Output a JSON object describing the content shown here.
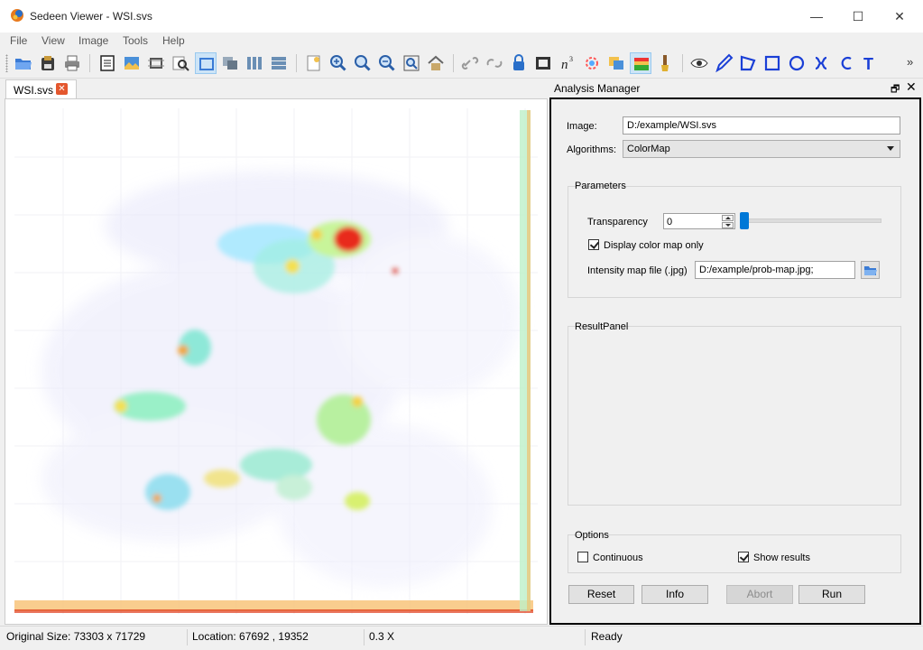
{
  "window": {
    "title": "Sedeen Viewer - WSI.svs",
    "minimize_glyph": "—",
    "maximize_glyph": "☐",
    "close_glyph": "✕"
  },
  "menu": [
    "File",
    "View",
    "Image",
    "Tools",
    "Help"
  ],
  "toolbar": {
    "icons": [
      "open-folder-icon",
      "save-icon",
      "print-icon",
      "document-icon",
      "image-icon",
      "crop-icon",
      "magnifier-icon",
      "single-view-icon",
      "overlay-view-icon",
      "columns-view-icon",
      "rows-view-icon",
      "new-page-icon",
      "zoom-in-icon",
      "zoom-out-icon",
      "zoom-minus-icon",
      "zoom-fit-icon",
      "home-icon",
      "link-icon",
      "unlink-icon",
      "lock-icon",
      "filmstrip-icon",
      "n-superscript-icon",
      "color-wheel-icon",
      "layers-icon",
      "heatmap-icon",
      "brush-icon",
      "eye-icon",
      "pen-icon",
      "polygon-icon",
      "rectangle-icon",
      "ellipse-icon",
      "freeform-icon",
      "curve-icon",
      "text-icon"
    ],
    "active": [
      "single-view-icon"
    ],
    "n_glyph": "n",
    "n_sup": "3",
    "text_glyph": "T",
    "overflow": "»"
  },
  "document_tab": {
    "label": "WSI.svs",
    "close_glyph": "✕"
  },
  "analysis_manager": {
    "title": "Analysis Manager",
    "float_glyph": "🗗",
    "close_glyph": "✕",
    "image_label": "Image:",
    "image_value": "D:/example/WSI.svs",
    "algorithms_label": "Algorithms:",
    "algorithm_value": "ColorMap",
    "parameters": {
      "title": "Parameters",
      "transparency_label": "Transparency",
      "transparency_value": "0",
      "transparency_level": 0,
      "display_color_map_only_label": "Display color map only",
      "display_color_map_only_checked": true,
      "intensity_map_label": "Intensity map file (.jpg)",
      "intensity_map_value": "D:/example/prob-map.jpg;"
    },
    "result_panel": {
      "title": "ResultPanel"
    },
    "options": {
      "title": "Options",
      "continuous_label": "Continuous",
      "continuous_checked": false,
      "show_results_label": "Show results",
      "show_results_checked": true
    },
    "buttons": {
      "reset": "Reset",
      "info": "Info",
      "abort": "Abort",
      "run": "Run"
    }
  },
  "status": {
    "original_size": "Original Size: 73303 x 71729",
    "location": "Location: 67692 , 19352",
    "zoom": "0.3 X",
    "state": "Ready"
  },
  "colors": {
    "accent": "#0078d7",
    "panel_border": "#000000",
    "tab_close": "#e4572e"
  }
}
